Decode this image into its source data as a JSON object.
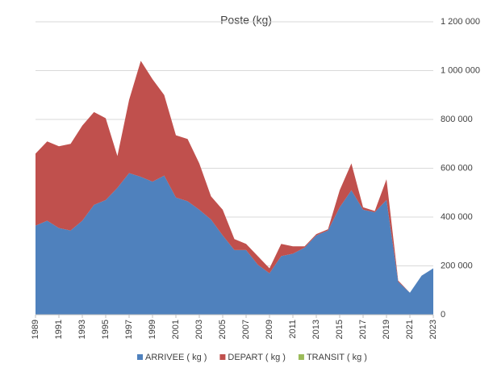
{
  "chart_data": {
    "type": "stacked_area",
    "title": "Poste (kg)",
    "x": [
      1989,
      1990,
      1991,
      1992,
      1993,
      1994,
      1995,
      1996,
      1997,
      1998,
      1999,
      2000,
      2001,
      2002,
      2003,
      2004,
      2005,
      2006,
      2007,
      2008,
      2009,
      2010,
      2011,
      2012,
      2013,
      2014,
      2015,
      2016,
      2017,
      2018,
      2019,
      2020,
      2021,
      2022,
      2023
    ],
    "series": [
      {
        "name": "ARRIVEE ( kg )",
        "color": "#4f81bd",
        "values": [
          365000,
          385000,
          355000,
          345000,
          385000,
          450000,
          470000,
          520000,
          580000,
          565000,
          545000,
          570000,
          480000,
          465000,
          430000,
          390000,
          325000,
          265000,
          265000,
          205000,
          170000,
          240000,
          250000,
          275000,
          325000,
          345000,
          440000,
          510000,
          430000,
          420000,
          470000,
          135000,
          90000,
          160000,
          190000
        ]
      },
      {
        "name": "DEPART ( kg )",
        "color": "#c0504d",
        "values": [
          295000,
          325000,
          335000,
          355000,
          390000,
          380000,
          335000,
          130000,
          300000,
          475000,
          420000,
          330000,
          255000,
          255000,
          190000,
          95000,
          105000,
          45000,
          25000,
          35000,
          20000,
          50000,
          30000,
          5000,
          5000,
          5000,
          70000,
          110000,
          10000,
          5000,
          85000,
          5000,
          0,
          0,
          0
        ]
      },
      {
        "name": "TRANSIT ( kg )",
        "color": "#9bbb59",
        "values": [
          0,
          0,
          0,
          0,
          0,
          0,
          0,
          0,
          0,
          0,
          0,
          0,
          0,
          0,
          0,
          0,
          0,
          0,
          0,
          0,
          0,
          0,
          0,
          0,
          0,
          0,
          0,
          0,
          0,
          0,
          0,
          0,
          0,
          0,
          0
        ]
      }
    ],
    "xlim": [
      1989,
      2023
    ],
    "xticks": [
      1989,
      1991,
      1993,
      1995,
      1997,
      1999,
      2001,
      2003,
      2005,
      2007,
      2009,
      2011,
      2013,
      2015,
      2017,
      2019,
      2021,
      2023
    ],
    "ylim": [
      0,
      1200000
    ],
    "yticks": [
      0,
      {
        "value": 200000,
        "label": "200 000"
      },
      {
        "value": 400000,
        "label": "400 000"
      },
      {
        "value": 600000,
        "label": "600 000"
      },
      {
        "value": 800000,
        "label": "800 000"
      },
      {
        "value": 1000000,
        "label": "1 000 000"
      },
      {
        "value": 1200000,
        "label": "1 200 000"
      }
    ],
    "grid": true,
    "legend": "bottom"
  }
}
